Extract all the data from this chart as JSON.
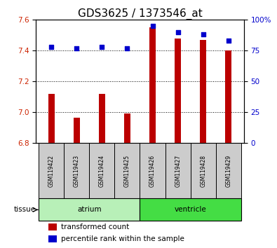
{
  "title": "GDS3625 / 1373546_at",
  "samples": [
    "GSM119422",
    "GSM119423",
    "GSM119424",
    "GSM119425",
    "GSM119426",
    "GSM119427",
    "GSM119428",
    "GSM119429"
  ],
  "transformed_count": [
    7.12,
    6.965,
    7.12,
    6.99,
    7.55,
    7.48,
    7.47,
    7.4
  ],
  "percentile_rank": [
    78,
    77,
    78,
    77,
    95,
    90,
    88,
    83
  ],
  "bar_bottom": 6.8,
  "ylim_left": [
    6.8,
    7.6
  ],
  "ylim_right": [
    0,
    100
  ],
  "yticks_left": [
    6.8,
    7.0,
    7.2,
    7.4,
    7.6
  ],
  "yticks_right": [
    0,
    25,
    50,
    75,
    100
  ],
  "ytick_labels_right": [
    "0",
    "25",
    "50",
    "75",
    "100%"
  ],
  "groups": [
    {
      "label": "atrium",
      "samples": [
        0,
        1,
        2,
        3
      ],
      "color": "#b8f0b8"
    },
    {
      "label": "ventricle",
      "samples": [
        4,
        5,
        6,
        7
      ],
      "color": "#44dd44"
    }
  ],
  "bar_color_red": "#bb0000",
  "bar_color_blue": "#0000cc",
  "background_color": "#ffffff",
  "plot_bg_color": "#ffffff",
  "sample_box_color": "#cccccc",
  "tick_label_color_left": "#cc2200",
  "tick_label_color_right": "#0000cc",
  "tissue_label": "tissue",
  "legend_red": "transformed count",
  "legend_blue": "percentile rank within the sample",
  "title_fontsize": 11,
  "axis_fontsize": 7.5,
  "label_fontsize": 7.5,
  "bar_width": 0.25
}
